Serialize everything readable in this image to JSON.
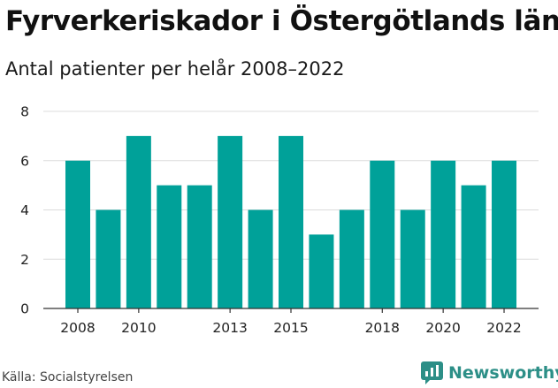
{
  "header": {
    "title": "Fyrverkeriskador i Östergötlands län",
    "subtitle": "Antal patienter per helår 2008–2022"
  },
  "footer": {
    "source": "Källa: Socialstyrelsen",
    "brand": "Newsworthy",
    "brand_icon": "newsworthy-logo-icon"
  },
  "colors": {
    "bar": "#00a199",
    "grid": "#dcdcdc",
    "axis": "#333333",
    "brand": "#2c8f87"
  },
  "chart_data": {
    "type": "bar",
    "title": "Fyrverkeriskador i Östergötlands län",
    "subtitle": "Antal patienter per helår 2008–2022",
    "categories": [
      "2008",
      "2009",
      "2010",
      "2011",
      "2012",
      "2013",
      "2014",
      "2015",
      "2016",
      "2017",
      "2018",
      "2019",
      "2020",
      "2021",
      "2022"
    ],
    "values": [
      6,
      4,
      7,
      5,
      5,
      7,
      4,
      7,
      3,
      4,
      6,
      4,
      6,
      5,
      6
    ],
    "x_tick_labels": [
      "2008",
      "2010",
      "2013",
      "2015",
      "2018",
      "2020",
      "2022"
    ],
    "y_ticks": [
      0,
      2,
      4,
      6,
      8
    ],
    "ylim": [
      0,
      8
    ],
    "xlabel": "",
    "ylabel": "",
    "grid": true,
    "legend": "none"
  }
}
